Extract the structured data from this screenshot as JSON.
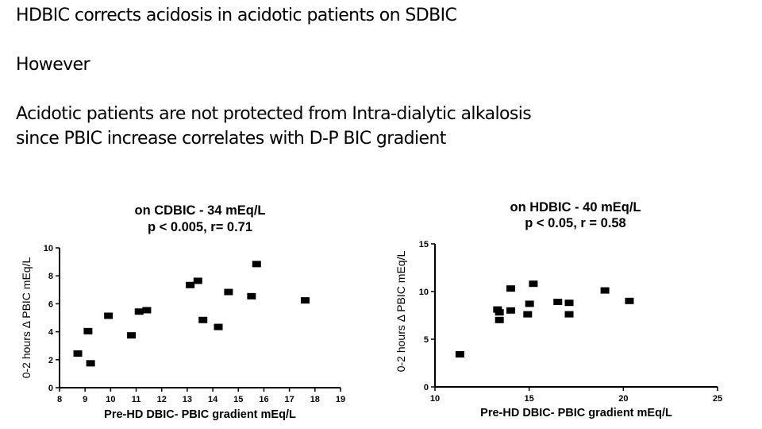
{
  "slide": {
    "line1": "HDBIC corrects acidosis in acidotic patients on SDBIC",
    "line2": "However",
    "line3": "Acidotic patients are not protected from Intra-dialytic alkalosis",
    "line4": "since PBIC increase correlates with D-P BIC gradient"
  },
  "chart_data": [
    {
      "type": "scatter",
      "title": "on CDBIC - 34 mEq/L",
      "subtitle": "p < 0.005, r= 0.71",
      "xlabel": "Pre-HD DBIC- PBIC gradient mEq/L",
      "ylabel": "0-2 hours Δ PBIC mEq/L",
      "xlim": [
        8,
        19
      ],
      "ylim": [
        0,
        10
      ],
      "xticks": [
        8,
        9,
        10,
        11,
        12,
        13,
        14,
        15,
        16,
        17,
        18,
        19
      ],
      "yticks": [
        0,
        2,
        4,
        6,
        8,
        10
      ],
      "grid": false,
      "marker_color": "#000000",
      "points": [
        {
          "x": 8.7,
          "y": 2.5
        },
        {
          "x": 9.1,
          "y": 4.1
        },
        {
          "x": 9.2,
          "y": 1.8
        },
        {
          "x": 9.9,
          "y": 5.2
        },
        {
          "x": 10.8,
          "y": 3.8
        },
        {
          "x": 11.1,
          "y": 5.5
        },
        {
          "x": 11.4,
          "y": 5.6
        },
        {
          "x": 13.1,
          "y": 7.4
        },
        {
          "x": 13.4,
          "y": 7.7
        },
        {
          "x": 13.6,
          "y": 4.9
        },
        {
          "x": 14.2,
          "y": 4.4
        },
        {
          "x": 14.6,
          "y": 6.9
        },
        {
          "x": 15.5,
          "y": 6.6
        },
        {
          "x": 15.7,
          "y": 8.9
        },
        {
          "x": 17.6,
          "y": 6.3
        }
      ]
    },
    {
      "type": "scatter",
      "title": "on HDBIC - 40 mEq/L",
      "subtitle": "p < 0.05, r = 0.58",
      "xlabel": "Pre-HD DBIC- PBIC gradient mEq/L",
      "ylabel": "0-2 hours Δ PBIC mEq/L",
      "xlim": [
        10,
        25
      ],
      "ylim": [
        0,
        15
      ],
      "xticks": [
        10,
        15,
        20,
        25
      ],
      "yticks": [
        0,
        5,
        10,
        15
      ],
      "grid": false,
      "marker_color": "#000000",
      "points": [
        {
          "x": 11.3,
          "y": 3.5
        },
        {
          "x": 13.3,
          "y": 8.2
        },
        {
          "x": 13.4,
          "y": 7.9
        },
        {
          "x": 13.4,
          "y": 7.1
        },
        {
          "x": 14.0,
          "y": 10.4
        },
        {
          "x": 14.0,
          "y": 8.1
        },
        {
          "x": 14.9,
          "y": 7.7
        },
        {
          "x": 15.0,
          "y": 8.8
        },
        {
          "x": 15.2,
          "y": 10.9
        },
        {
          "x": 16.5,
          "y": 9.0
        },
        {
          "x": 17.1,
          "y": 7.7
        },
        {
          "x": 17.1,
          "y": 8.9
        },
        {
          "x": 19.0,
          "y": 10.2
        },
        {
          "x": 20.3,
          "y": 9.1
        }
      ]
    }
  ]
}
